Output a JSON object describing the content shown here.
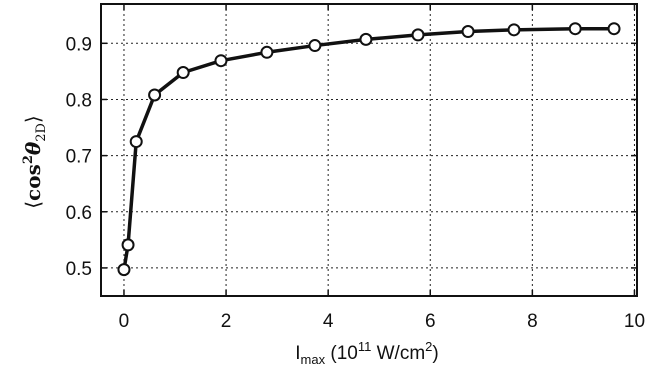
{
  "chart_data": {
    "type": "line",
    "title": "",
    "xlabel": {
      "main": "I",
      "sub": "max",
      "pre": " (10",
      "sup": "11",
      "post": " W/cm",
      "sup2": "2",
      "close": ")"
    },
    "ylabel": {
      "open": "⟨",
      "cos": "cos",
      "sup": "2",
      "theta": "θ",
      "sub": "2D",
      "close": "⟩"
    },
    "xlim": [
      -0.45,
      10.05
    ],
    "ylim": [
      0.45,
      0.97
    ],
    "xticks": [
      0,
      2,
      4,
      6,
      8,
      10
    ],
    "yticks": [
      0.5,
      0.6,
      0.7,
      0.8,
      0.9
    ],
    "xtick_labels": [
      "0",
      "2",
      "4",
      "6",
      "8",
      "10"
    ],
    "ytick_labels": [
      "0.5",
      "0.6",
      "0.7",
      "0.8",
      "0.9"
    ],
    "grid": true,
    "legend": "none",
    "series": [
      {
        "x": [
          0.0,
          0.08,
          0.24,
          0.6,
          1.16,
          1.9,
          2.8,
          3.74,
          4.74,
          5.76,
          6.74,
          7.64,
          8.84,
          9.6
        ],
        "y": [
          0.497,
          0.541,
          0.725,
          0.808,
          0.848,
          0.869,
          0.884,
          0.896,
          0.907,
          0.915,
          0.921,
          0.924,
          0.926,
          0.926
        ],
        "color": "#111111",
        "marker": "open-circle"
      }
    ]
  }
}
